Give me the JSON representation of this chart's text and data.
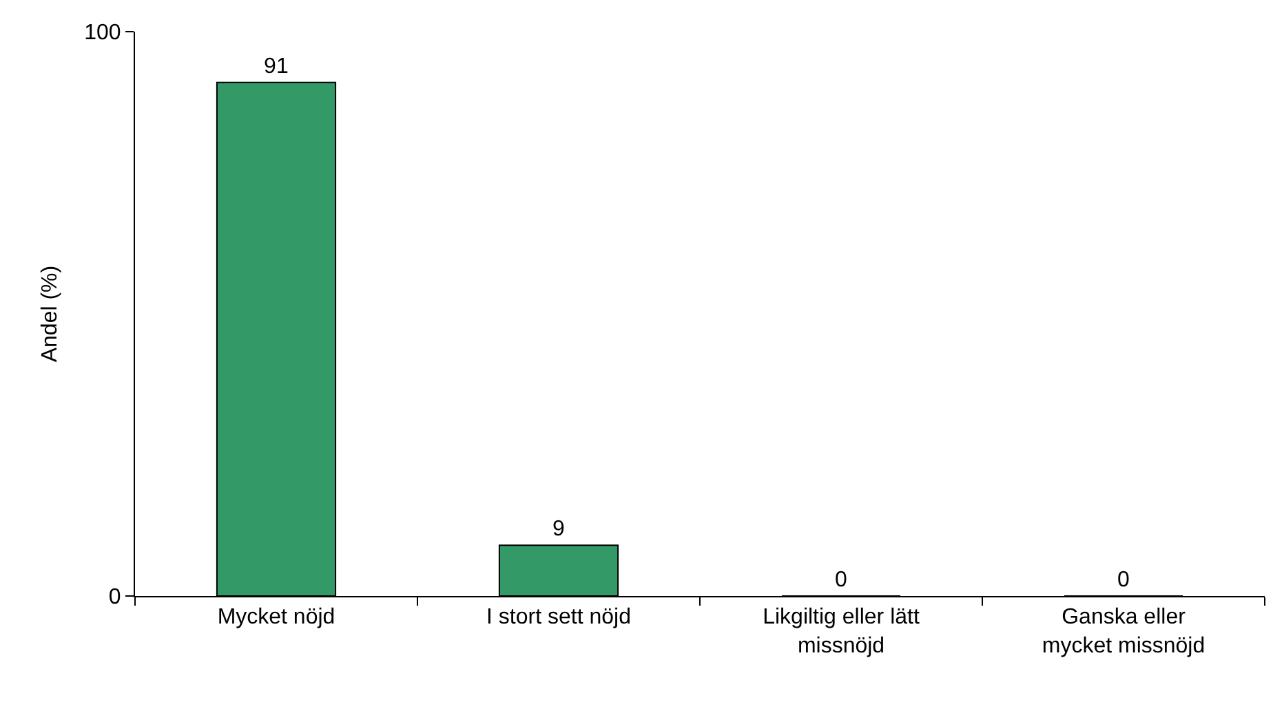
{
  "chart_data": {
    "type": "bar",
    "ylabel": "Andel (%)",
    "categories": [
      "Mycket nöjd",
      "I stort sett nöjd",
      "Likgiltig eller lätt\nmissnöjd",
      "Ganska eller\nmycket missnöjd"
    ],
    "values": [
      91,
      9,
      0,
      0
    ],
    "color": "#339966",
    "ylim": [
      0,
      100
    ],
    "yticks": [
      0,
      100
    ],
    "data_labels": true
  }
}
